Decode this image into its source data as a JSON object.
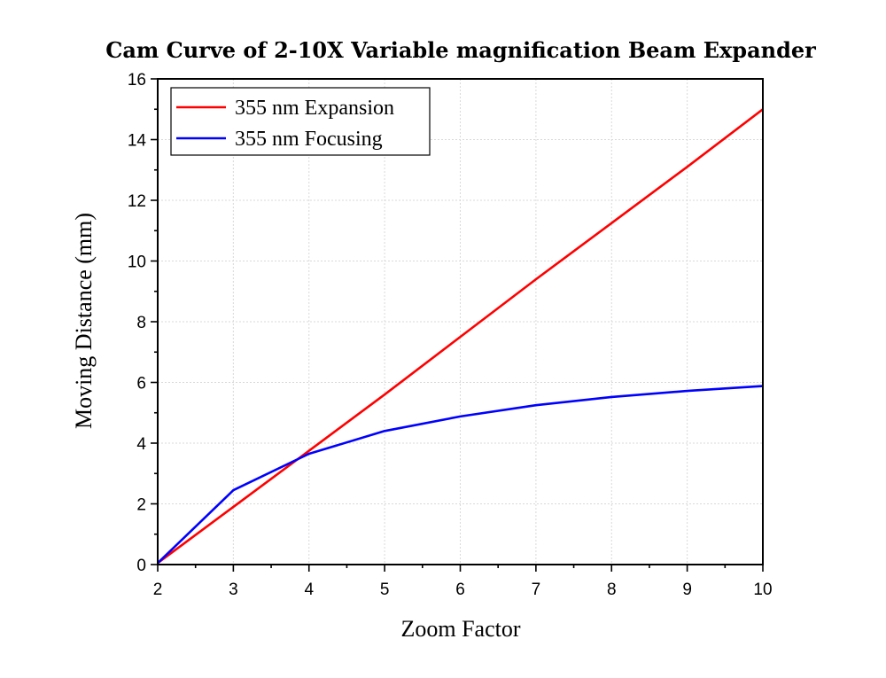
{
  "chart_data": {
    "type": "line",
    "title": "Cam Curve of 2-10X Variable magnification Beam Expander",
    "xlabel": "Zoom Factor",
    "ylabel": "Moving Distance (mm)",
    "xlim": [
      2,
      10
    ],
    "ylim": [
      0,
      16
    ],
    "xticks": [
      2,
      3,
      4,
      5,
      6,
      7,
      8,
      9,
      10
    ],
    "yticks": [
      0,
      2,
      4,
      6,
      8,
      10,
      12,
      14,
      16
    ],
    "grid": true,
    "legend_position": "top-left",
    "series": [
      {
        "name": "355 nm Expansion",
        "color": "#ff0000",
        "x": [
          2,
          3,
          4,
          5,
          6,
          7,
          8,
          9,
          10
        ],
        "y": [
          0.05,
          1.9,
          3.75,
          5.6,
          7.5,
          9.4,
          11.25,
          13.1,
          15.0
        ]
      },
      {
        "name": "355 nm Focusing",
        "color": "#0000ff",
        "x": [
          2,
          3,
          4,
          5,
          6,
          7,
          8,
          9,
          10
        ],
        "y": [
          0.05,
          2.45,
          3.65,
          4.4,
          4.88,
          5.25,
          5.52,
          5.72,
          5.88
        ]
      }
    ]
  }
}
